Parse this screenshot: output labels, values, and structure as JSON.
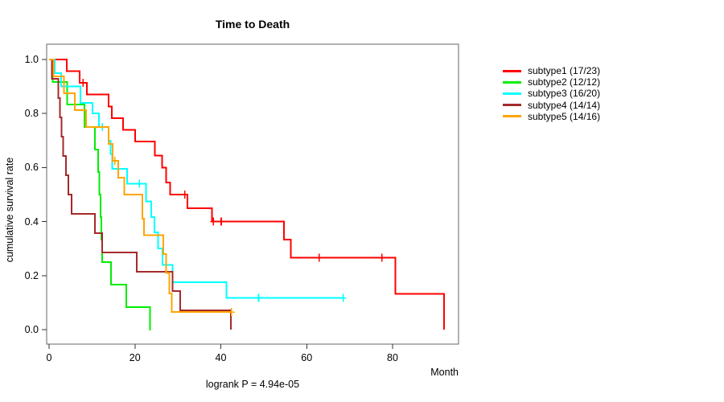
{
  "chart_data": {
    "type": "line",
    "subtype": "kaplan-meier-step",
    "title": "Time to Death",
    "ylabel": "cumulative survival rate",
    "xlabel": "Month",
    "footnote": "logrank P = 4.94e-05",
    "x_ticks": [
      0,
      20,
      40,
      60,
      80
    ],
    "y_ticks": [
      0.0,
      0.2,
      0.4,
      0.6,
      0.8,
      1.0
    ],
    "xlim": [
      0,
      95.5
    ],
    "ylim": [
      0,
      1.0
    ],
    "grid": false,
    "legend_position": "right",
    "series": [
      {
        "name": "subtype1 (17/23)",
        "color": "#FF0000",
        "steps": [
          [
            0,
            1
          ],
          [
            4.1,
            0.957
          ],
          [
            7.1,
            0.913
          ],
          [
            8.8,
            0.87
          ],
          [
            13.9,
            0.826
          ],
          [
            14.6,
            0.783
          ],
          [
            17.2,
            0.739
          ],
          [
            20,
            0.696
          ],
          [
            24.6,
            0.645
          ],
          [
            26.3,
            0.6
          ],
          [
            27.3,
            0.545
          ],
          [
            28.2,
            0.5
          ],
          [
            32.2,
            0.45
          ],
          [
            37.9,
            0.4
          ],
          [
            54.7,
            0.333
          ],
          [
            56.3,
            0.267
          ],
          [
            80.7,
            0.133
          ],
          [
            92,
            0
          ]
        ],
        "censors": [
          [
            7.9,
            0.913
          ],
          [
            31.6,
            0.5
          ],
          [
            38.3,
            0.4
          ],
          [
            40.1,
            0.4
          ],
          [
            62.9,
            0.267
          ],
          [
            77.5,
            0.267
          ]
        ],
        "end_x": 92
      },
      {
        "name": "subtype2 (12/12)",
        "color": "#00EE00",
        "steps": [
          [
            0,
            1
          ],
          [
            0.8,
            0.917
          ],
          [
            4.2,
            0.833
          ],
          [
            8.2,
            0.75
          ],
          [
            10.7,
            0.667
          ],
          [
            11.4,
            0.583
          ],
          [
            11.7,
            0.5
          ],
          [
            12,
            0.417
          ],
          [
            12.2,
            0.333
          ],
          [
            12.4,
            0.25
          ],
          [
            14.4,
            0.167
          ],
          [
            18,
            0.083
          ],
          [
            23.5,
            0
          ]
        ],
        "censors": [],
        "end_x": 23.7
      },
      {
        "name": "subtype3 (16/20)",
        "color": "#00FFFF",
        "steps": [
          [
            0,
            1
          ],
          [
            1.3,
            0.95
          ],
          [
            2.8,
            0.9
          ],
          [
            7.3,
            0.84
          ],
          [
            10.1,
            0.8
          ],
          [
            11.6,
            0.75
          ],
          [
            13.9,
            0.7
          ],
          [
            14.3,
            0.65
          ],
          [
            14.7,
            0.595
          ],
          [
            18.2,
            0.54
          ],
          [
            22.6,
            0.475
          ],
          [
            23.8,
            0.417
          ],
          [
            24.5,
            0.36
          ],
          [
            25.4,
            0.3
          ],
          [
            26.4,
            0.24
          ],
          [
            28.8,
            0.175
          ],
          [
            41.3,
            0.117
          ]
        ],
        "censors": [
          [
            12.4,
            0.75
          ],
          [
            21,
            0.54
          ],
          [
            48.8,
            0.117
          ],
          [
            68.5,
            0.117
          ]
        ],
        "end_x": 68.5
      },
      {
        "name": "subtype4 (14/14)",
        "color": "#A52A2A",
        "steps": [
          [
            0,
            1
          ],
          [
            0.7,
            0.929
          ],
          [
            2.2,
            0.857
          ],
          [
            2.5,
            0.786
          ],
          [
            2.9,
            0.714
          ],
          [
            3.3,
            0.643
          ],
          [
            3.9,
            0.571
          ],
          [
            4.5,
            0.5
          ],
          [
            5.2,
            0.429
          ],
          [
            10.7,
            0.357
          ],
          [
            12.4,
            0.286
          ],
          [
            20.4,
            0.214
          ],
          [
            28.8,
            0.143
          ],
          [
            30.5,
            0.071
          ],
          [
            42.3,
            0
          ]
        ],
        "censors": [],
        "end_x": 42.3
      },
      {
        "name": "subtype5 (14/16)",
        "color": "#FFA500",
        "steps": [
          [
            0,
            1
          ],
          [
            1,
            0.938
          ],
          [
            3.5,
            0.875
          ],
          [
            6,
            0.813
          ],
          [
            8.6,
            0.75
          ],
          [
            13.9,
            0.688
          ],
          [
            14.8,
            0.625
          ],
          [
            16.1,
            0.563
          ],
          [
            17.5,
            0.5
          ],
          [
            21.7,
            0.41
          ],
          [
            22.1,
            0.35
          ],
          [
            26.6,
            0.28
          ],
          [
            27.3,
            0.21
          ],
          [
            28,
            0.134
          ],
          [
            28.6,
            0.065
          ]
        ],
        "censors": [
          [
            15.3,
            0.625
          ],
          [
            42.5,
            0.065
          ]
        ],
        "end_x": 42.5
      }
    ]
  }
}
